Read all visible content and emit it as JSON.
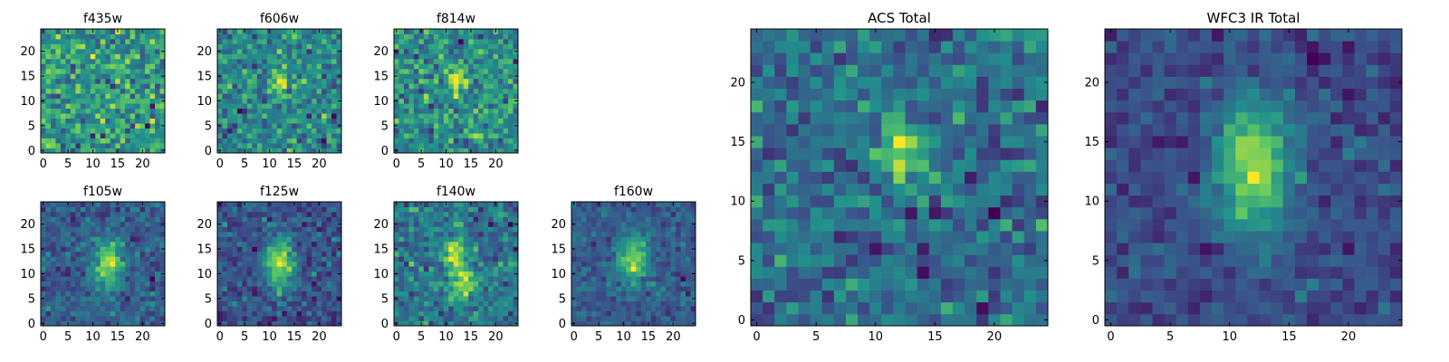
{
  "figure": {
    "colormap": "viridis",
    "colormap_stops": [
      "#440154",
      "#3b528b",
      "#21918c",
      "#5ec962",
      "#fde725"
    ]
  },
  "chart_data": [
    {
      "type": "heatmap",
      "title": "f435w",
      "grid": false,
      "xlim": [
        0,
        24
      ],
      "ylim": [
        0,
        24
      ],
      "xticks": [
        0,
        5,
        10,
        15,
        20
      ],
      "yticks": [
        0,
        5,
        10,
        15,
        20
      ],
      "image_size": [
        25,
        25
      ],
      "source_profile": {
        "kind": "noise",
        "center": [
          12,
          13
        ],
        "peak": 0.0,
        "background": 0.68,
        "noise": 0.16
      }
    },
    {
      "type": "heatmap",
      "title": "f606w",
      "grid": false,
      "xlim": [
        0,
        24
      ],
      "ylim": [
        0,
        24
      ],
      "xticks": [
        0,
        5,
        10,
        15,
        20
      ],
      "yticks": [
        0,
        5,
        10,
        15,
        20
      ],
      "image_size": [
        25,
        25
      ],
      "source_profile": {
        "kind": "compact",
        "center": [
          12,
          14
        ],
        "peak": 0.45,
        "background": 0.52,
        "noise": 0.13
      }
    },
    {
      "type": "heatmap",
      "title": "f814w",
      "grid": false,
      "xlim": [
        0,
        24
      ],
      "ylim": [
        0,
        24
      ],
      "xticks": [
        0,
        5,
        10,
        15,
        20
      ],
      "yticks": [
        0,
        5,
        10,
        15,
        20
      ],
      "image_size": [
        25,
        25
      ],
      "source_profile": {
        "kind": "compact",
        "center": [
          12,
          14
        ],
        "peak": 0.42,
        "background": 0.5,
        "noise": 0.13
      }
    },
    {
      "type": "heatmap",
      "title": "f105w",
      "grid": false,
      "xlim": [
        0,
        24
      ],
      "ylim": [
        0,
        24
      ],
      "xticks": [
        0,
        5,
        10,
        15,
        20
      ],
      "yticks": [
        0,
        5,
        10,
        15,
        20
      ],
      "image_size": [
        25,
        25
      ],
      "source_profile": {
        "kind": "elongated",
        "center": [
          13,
          12
        ],
        "peak": 0.62,
        "background": 0.4,
        "noise": 0.1
      }
    },
    {
      "type": "heatmap",
      "title": "f125w",
      "grid": false,
      "xlim": [
        0,
        24
      ],
      "ylim": [
        0,
        24
      ],
      "xticks": [
        0,
        5,
        10,
        15,
        20
      ],
      "yticks": [
        0,
        5,
        10,
        15,
        20
      ],
      "image_size": [
        25,
        25
      ],
      "source_profile": {
        "kind": "elongated",
        "center": [
          12,
          12
        ],
        "peak": 0.68,
        "background": 0.33,
        "noise": 0.1
      }
    },
    {
      "type": "heatmap",
      "title": "f140w",
      "grid": false,
      "xlim": [
        0,
        24
      ],
      "ylim": [
        0,
        24
      ],
      "xticks": [
        0,
        5,
        10,
        15,
        20
      ],
      "yticks": [
        0,
        5,
        10,
        15,
        20
      ],
      "image_size": [
        25,
        25
      ],
      "source_profile": {
        "kind": "double",
        "center": [
          12,
          11
        ],
        "peak": 0.55,
        "background": 0.45,
        "noise": 0.12
      }
    },
    {
      "type": "heatmap",
      "title": "f160w",
      "grid": false,
      "xlim": [
        0,
        24
      ],
      "ylim": [
        0,
        24
      ],
      "xticks": [
        0,
        5,
        10,
        15,
        20
      ],
      "yticks": [
        0,
        5,
        10,
        15,
        20
      ],
      "image_size": [
        25,
        25
      ],
      "source_profile": {
        "kind": "elongated",
        "center": [
          12,
          13
        ],
        "peak": 0.72,
        "background": 0.3,
        "noise": 0.1
      }
    },
    {
      "type": "heatmap",
      "title": "ACS Total",
      "grid": false,
      "xlim": [
        0,
        24
      ],
      "ylim": [
        0,
        24
      ],
      "xticks": [
        0,
        5,
        10,
        15,
        20
      ],
      "yticks": [
        0,
        5,
        10,
        15,
        20
      ],
      "image_size": [
        25,
        25
      ],
      "source_profile": {
        "kind": "compact",
        "center": [
          12,
          14
        ],
        "peak": 0.45,
        "background": 0.55,
        "noise": 0.11
      }
    },
    {
      "type": "heatmap",
      "title": "WFC3 IR Total",
      "grid": false,
      "xlim": [
        0,
        24
      ],
      "ylim": [
        0,
        24
      ],
      "xticks": [
        0,
        5,
        10,
        15,
        20
      ],
      "yticks": [
        0,
        5,
        10,
        15,
        20
      ],
      "image_size": [
        25,
        25
      ],
      "source_profile": {
        "kind": "elongated",
        "center": [
          12,
          13
        ],
        "peak": 0.7,
        "background": 0.3,
        "noise": 0.07
      }
    }
  ]
}
